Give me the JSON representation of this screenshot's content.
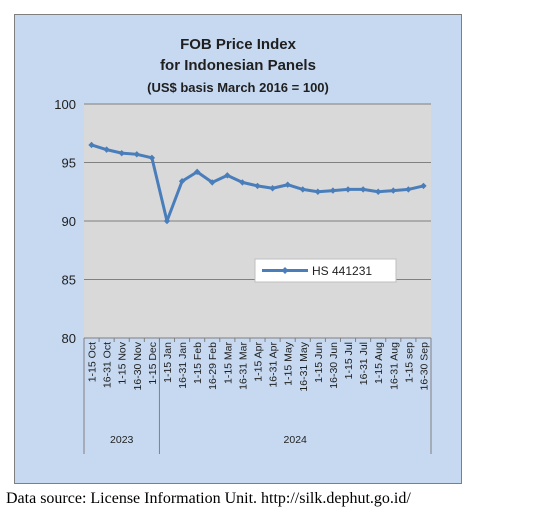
{
  "chart_data": {
    "type": "line",
    "title_lines": [
      "FOB Price Index",
      "for Indonesian Panels",
      "(US$ basis March 2016 = 100)"
    ],
    "ylim": [
      80,
      100
    ],
    "yticks": [
      80,
      85,
      90,
      95,
      100
    ],
    "grid": true,
    "legend_position": "center-right",
    "categories": [
      "1-15 Oct",
      "16-31 Oct",
      "1-15 Nov",
      "16-30 Nov",
      "1-15 Dec",
      "1-15 Jan",
      "16-31 Jan",
      "1-15 Feb",
      "16-29 Feb",
      "1-15 Mar",
      "16-31 Mar",
      "1-15 Apr",
      "16-31 Apr",
      "1-15 May",
      "16-31 May",
      "1-15 Jun",
      "16-30 Jun",
      "1-15 Jul",
      "16-31 Jul",
      "1-15 Aug",
      "16-31 Aug",
      "1-15 sep",
      "16-30 Sep"
    ],
    "year_groups": [
      {
        "label": "2023",
        "count": 5
      },
      {
        "label": "2024",
        "count": 18
      }
    ],
    "series": [
      {
        "name": "HS 441231",
        "color": "#4a7ebb",
        "values": [
          96.5,
          96.1,
          95.8,
          95.7,
          95.4,
          90.0,
          93.4,
          94.2,
          93.3,
          93.9,
          93.3,
          93.0,
          92.8,
          93.1,
          92.7,
          92.5,
          92.6,
          92.7,
          92.7,
          92.5,
          92.6,
          92.7,
          93.0
        ]
      }
    ],
    "plot_background": "#d9d9d9",
    "chart_background": "#c6d9f1"
  },
  "source": "Data source: License Information Unit. http://silk.dephut.go.id/"
}
